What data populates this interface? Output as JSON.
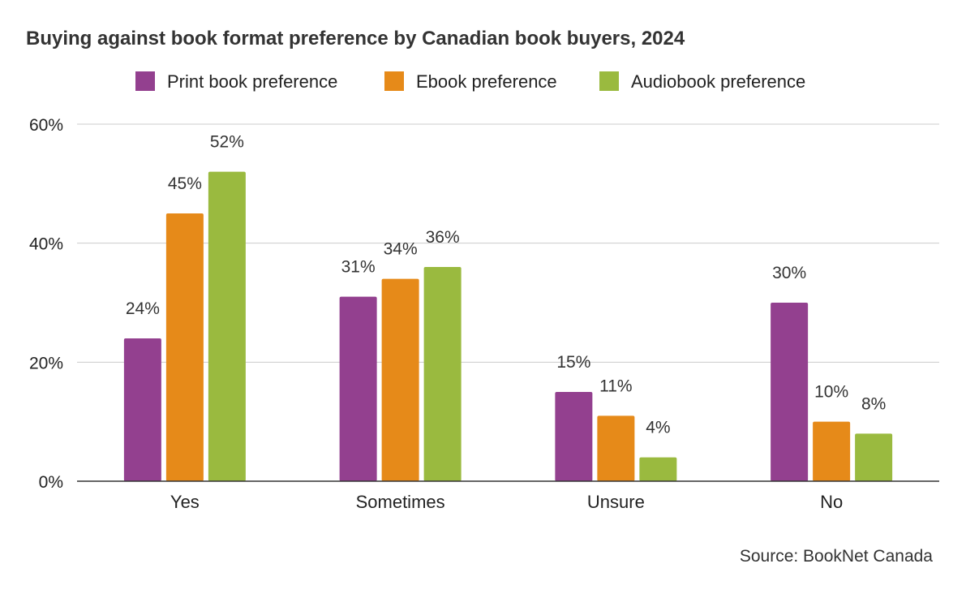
{
  "chart_data": {
    "type": "bar",
    "title": "Buying against book format preference by Canadian book buyers, 2024",
    "categories": [
      "Yes",
      "Sometimes",
      "Unsure",
      "No"
    ],
    "series": [
      {
        "name": "Print book preference",
        "color": "#93408f",
        "values": [
          24,
          31,
          15,
          30
        ],
        "labels": [
          "24%",
          "31%",
          "15%",
          "30%"
        ]
      },
      {
        "name": "Ebook preference",
        "color": "#e68a19",
        "values": [
          45,
          34,
          11,
          10
        ],
        "labels": [
          "45%",
          "34%",
          "11%",
          "10%"
        ]
      },
      {
        "name": "Audiobook preference",
        "color": "#9aba3f",
        "values": [
          52,
          36,
          4,
          8
        ],
        "labels": [
          "52%",
          "36%",
          "4%",
          "8%"
        ]
      }
    ],
    "ylim": [
      0,
      60
    ],
    "yticks": [
      0,
      20,
      40,
      60
    ],
    "ytick_labels": [
      "0%",
      "20%",
      "40%",
      "60%"
    ],
    "xlabel": "",
    "ylabel": "",
    "grid": true,
    "legend_position": "top-center",
    "source": "Source: BookNet Canada"
  }
}
